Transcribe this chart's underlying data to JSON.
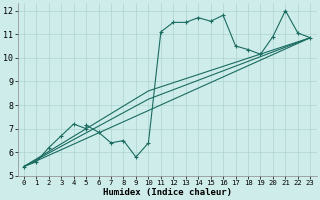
{
  "xlabel": "Humidex (Indice chaleur)",
  "background_color": "#ceecea",
  "grid_color": "#aed4d0",
  "line_color": "#1a6b60",
  "xlim": [
    -0.5,
    23.5
  ],
  "ylim": [
    5,
    12.3
  ],
  "xticks": [
    0,
    1,
    2,
    3,
    4,
    5,
    6,
    7,
    8,
    9,
    10,
    11,
    12,
    13,
    14,
    15,
    16,
    17,
    18,
    19,
    20,
    21,
    22,
    23
  ],
  "yticks": [
    5,
    6,
    7,
    8,
    9,
    10,
    11,
    12
  ],
  "line_main": {
    "x": [
      0,
      1,
      2,
      3,
      4,
      5,
      5,
      6,
      7,
      8,
      9,
      10,
      11,
      12,
      13,
      14,
      15,
      16,
      17,
      18,
      19,
      20,
      21,
      22,
      23
    ],
    "y": [
      5.4,
      5.6,
      6.2,
      6.7,
      7.2,
      7.0,
      7.15,
      6.85,
      6.4,
      6.5,
      5.8,
      6.4,
      11.1,
      11.5,
      11.5,
      11.7,
      11.55,
      11.8,
      10.5,
      10.35,
      10.15,
      10.9,
      12.0,
      11.05,
      10.85
    ]
  },
  "line_straight": {
    "x": [
      0,
      23
    ],
    "y": [
      5.4,
      10.85
    ]
  },
  "line_trend2": {
    "x": [
      0,
      10,
      23
    ],
    "y": [
      5.4,
      8.25,
      10.85
    ]
  },
  "line_trend3": {
    "x": [
      0,
      10,
      23
    ],
    "y": [
      5.4,
      8.6,
      10.85
    ]
  }
}
